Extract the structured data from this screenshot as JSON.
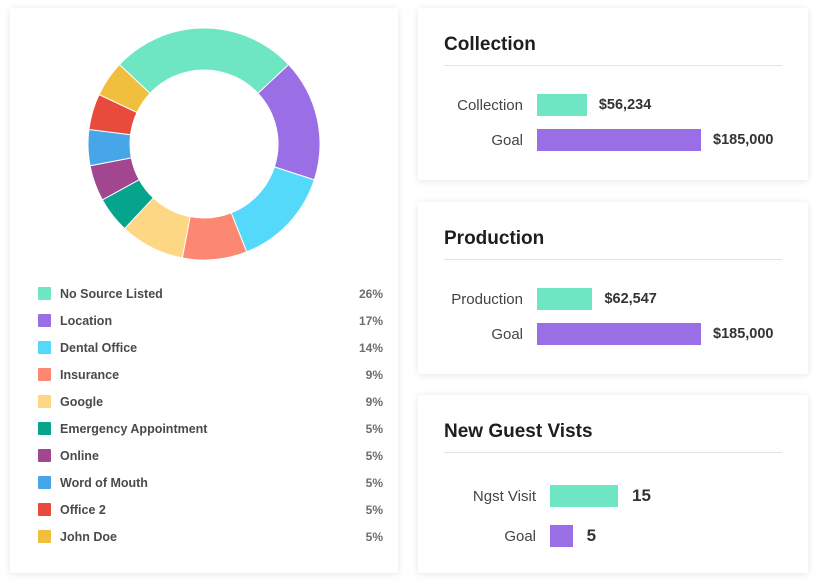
{
  "colors": {
    "teal": "#6ee5c3",
    "purple": "#9a6ee4",
    "cyan": "#55d9fb",
    "salmon": "#fc8873",
    "yellow": "#fed785",
    "dark_teal": "#06a48d",
    "magenta": "#a2468f",
    "blue": "#47a6e8",
    "red": "#e84a3c",
    "gold": "#f0bf3e"
  },
  "chart_data": [
    {
      "type": "pie",
      "donut": true,
      "categories": [
        "No Source Listed",
        "Location",
        "Dental Office",
        "Insurance",
        "Google",
        "Emergency Appointment",
        "Online",
        "Word of Mouth",
        "Office 2",
        "John Doe"
      ],
      "values": [
        26,
        17,
        14,
        9,
        9,
        5,
        5,
        5,
        5,
        5
      ],
      "labels": [
        "26%",
        "17%",
        "14%",
        "9%",
        "9%",
        "5%",
        "5%",
        "5%",
        "5%",
        "5%"
      ],
      "colors": [
        "#6ee5c3",
        "#9a6ee4",
        "#55d9fb",
        "#fc8873",
        "#fed785",
        "#06a48d",
        "#a2468f",
        "#47a6e8",
        "#e84a3c",
        "#f0bf3e"
      ],
      "legend_placement": "bottom"
    },
    {
      "type": "bar",
      "title": "Collection",
      "categories": [
        "Collection",
        "Goal"
      ],
      "values": [
        56234,
        185000
      ],
      "labels": [
        "$56,234",
        "$185,000"
      ],
      "colors": [
        "#6ee5c3",
        "#9a6ee4"
      ],
      "orientation": "horizontal"
    },
    {
      "type": "bar",
      "title": "Production",
      "categories": [
        "Production",
        "Goal"
      ],
      "values": [
        62547,
        185000
      ],
      "labels": [
        "$62,547",
        "$185,000"
      ],
      "colors": [
        "#6ee5c3",
        "#9a6ee4"
      ],
      "orientation": "horizontal"
    },
    {
      "type": "bar",
      "title": "New Guest Vists",
      "categories": [
        "Ngst Visit",
        "Goal"
      ],
      "values": [
        15,
        5
      ],
      "labels": [
        "15",
        "5"
      ],
      "colors": [
        "#6ee5c3",
        "#9a6ee4"
      ],
      "orientation": "horizontal"
    }
  ]
}
